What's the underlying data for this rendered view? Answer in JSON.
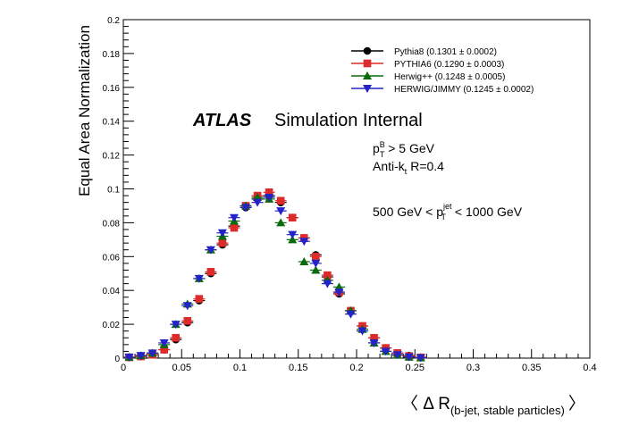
{
  "chart_data": {
    "type": "scatter",
    "title": "",
    "xlabel": "〈 Δ R",
    "xlabel_sub": "(b-jet, stable particles)",
    "xlabel_close": "〉",
    "ylabel": "Equal Area Normalization",
    "xlim": [
      0,
      0.4
    ],
    "ylim": [
      0,
      0.2
    ],
    "x_ticks": [
      "0",
      "0.05",
      "0.1",
      "0.15",
      "0.2",
      "0.25",
      "0.3",
      "0.35",
      "0.4"
    ],
    "y_ticks": [
      "0",
      "0.02",
      "0.04",
      "0.06",
      "0.08",
      "0.1",
      "0.12",
      "0.14",
      "0.16",
      "0.18",
      "0.2"
    ],
    "legend_position": "top-right",
    "annotations": {
      "atlas": "ATLAS",
      "simulation": "Simulation Internal",
      "ptb_p": "p",
      "ptb_sup": "B",
      "ptb_sub": "T",
      "ptb_rest": " > 5 GeV",
      "antikt_pre": "Anti-k",
      "antikt_sub": "t",
      "antikt_rest": " R=0.4",
      "ptjet_pre": "500 GeV < p",
      "ptjet_sup": "jet",
      "ptjet_sub": "T",
      "ptjet_rest": " < 1000 GeV"
    },
    "series": [
      {
        "name": "Pythia8 (0.1301 ± 0.0002)",
        "color": "#000000",
        "marker": "circle",
        "x": [
          0.005,
          0.015,
          0.025,
          0.035,
          0.045,
          0.055,
          0.065,
          0.075,
          0.085,
          0.095,
          0.105,
          0.115,
          0.125,
          0.135,
          0.145,
          0.155,
          0.165,
          0.175,
          0.185,
          0.195,
          0.205,
          0.215,
          0.225,
          0.235,
          0.245,
          0.255
        ],
        "y": [
          0.0005,
          0.001,
          0.002,
          0.005,
          0.011,
          0.021,
          0.034,
          0.05,
          0.067,
          0.078,
          0.089,
          0.094,
          0.096,
          0.092,
          0.083,
          0.071,
          0.061,
          0.048,
          0.038,
          0.028,
          0.019,
          0.012,
          0.006,
          0.003,
          0.0015,
          0.0005
        ]
      },
      {
        "name": "PYTHIA6 (0.1290 ± 0.0003)",
        "color": "#dd2a2a",
        "marker": "square",
        "x": [
          0.005,
          0.015,
          0.025,
          0.035,
          0.045,
          0.055,
          0.065,
          0.075,
          0.085,
          0.095,
          0.105,
          0.115,
          0.125,
          0.135,
          0.145,
          0.155,
          0.165,
          0.175,
          0.185,
          0.195,
          0.205,
          0.215,
          0.225,
          0.235,
          0.245,
          0.255
        ],
        "y": [
          0.0005,
          0.001,
          0.002,
          0.005,
          0.012,
          0.022,
          0.035,
          0.051,
          0.068,
          0.077,
          0.09,
          0.096,
          0.098,
          0.093,
          0.083,
          0.071,
          0.06,
          0.049,
          0.039,
          0.028,
          0.019,
          0.012,
          0.006,
          0.003,
          0.0012,
          0.0004
        ]
      },
      {
        "name": "Herwig++ (0.1248 ± 0.0005)",
        "color": "#0a6b0a",
        "marker": "triangle-up",
        "x": [
          0.005,
          0.015,
          0.025,
          0.035,
          0.045,
          0.055,
          0.065,
          0.075,
          0.085,
          0.095,
          0.105,
          0.115,
          0.125,
          0.135,
          0.145,
          0.155,
          0.165,
          0.175,
          0.185,
          0.195,
          0.205,
          0.215,
          0.225,
          0.235,
          0.245,
          0.255
        ],
        "y": [
          0.0005,
          0.0015,
          0.003,
          0.008,
          0.02,
          0.032,
          0.047,
          0.064,
          0.072,
          0.081,
          0.09,
          0.095,
          0.094,
          0.08,
          0.07,
          0.057,
          0.052,
          0.046,
          0.042,
          0.028,
          0.017,
          0.009,
          0.004,
          0.0018,
          0.0006,
          0.0002
        ]
      },
      {
        "name": "HERWIG/JIMMY (0.1245 ± 0.0002)",
        "color": "#2323c8",
        "marker": "triangle-down",
        "x": [
          0.005,
          0.015,
          0.025,
          0.035,
          0.045,
          0.055,
          0.065,
          0.075,
          0.085,
          0.095,
          0.105,
          0.115,
          0.125,
          0.135,
          0.145,
          0.155,
          0.165,
          0.175,
          0.185,
          0.195,
          0.205,
          0.215,
          0.225,
          0.235,
          0.245,
          0.255
        ],
        "y": [
          0.0005,
          0.0015,
          0.003,
          0.009,
          0.02,
          0.031,
          0.047,
          0.064,
          0.074,
          0.083,
          0.089,
          0.092,
          0.095,
          0.087,
          0.073,
          0.069,
          0.056,
          0.044,
          0.039,
          0.026,
          0.016,
          0.009,
          0.004,
          0.002,
          0.0007,
          0.0002
        ]
      }
    ]
  }
}
